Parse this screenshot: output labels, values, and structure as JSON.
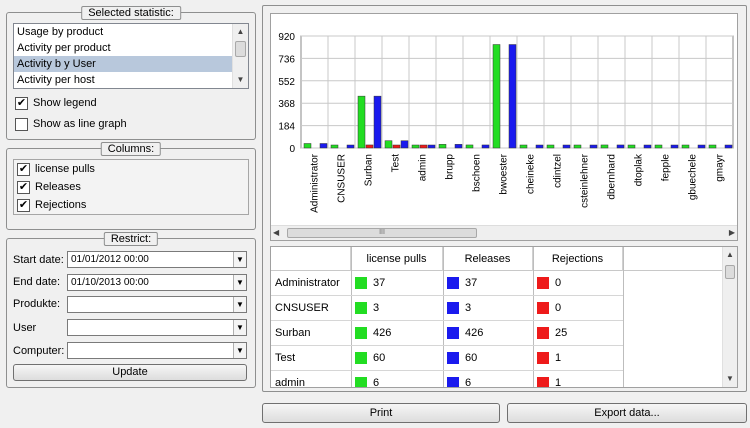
{
  "selected_statistic": {
    "title": "Selected statistic:",
    "items": [
      "Usage by product",
      "Activity per product",
      "Activity b y User",
      "Activity per host"
    ],
    "selected_index": 2,
    "show_legend_label": "Show legend",
    "show_legend_checked": true,
    "show_line_graph_label": "Show as line graph",
    "show_line_graph_checked": false
  },
  "columns": {
    "title": "Columns:",
    "items": [
      {
        "label": "license pulls",
        "checked": true
      },
      {
        "label": "Releases",
        "checked": true
      },
      {
        "label": "Rejections",
        "checked": true
      }
    ]
  },
  "restrict": {
    "title": "Restrict:",
    "start_label": "Start date:",
    "start_value": "01/01/2012 00:00",
    "end_label": "End date:",
    "end_value": "01/10/2013 00:00",
    "produkte_label": "Produkte:",
    "produkte_value": "",
    "user_label": "User",
    "user_value": "",
    "computer_label": "Computer:",
    "computer_value": "",
    "update_label": "Update"
  },
  "chart_data": {
    "type": "bar",
    "categories": [
      "Administrator",
      "CNSUSER",
      "Surban",
      "Test",
      "admin",
      "brupp",
      "bschoen",
      "bwoester",
      "cheineke",
      "cdintzel",
      "csteinlehner",
      "dbernhard",
      "dtoplak",
      "fepple",
      "gbuechele",
      "gmayr"
    ],
    "series": [
      {
        "name": "license pulls",
        "color": "#22dd22",
        "values": [
          37,
          3,
          426,
          60,
          6,
          30,
          25,
          850,
          20,
          10,
          4,
          25,
          2,
          20,
          10,
          10
        ]
      },
      {
        "name": "Releases",
        "color": "#1a1aee",
        "values": [
          37,
          3,
          426,
          60,
          6,
          30,
          25,
          850,
          20,
          10,
          4,
          25,
          2,
          20,
          10,
          10
        ]
      },
      {
        "name": "Rejections",
        "color": "#ee1a1a",
        "values": [
          0,
          0,
          25,
          1,
          1,
          0,
          0,
          0,
          0,
          0,
          0,
          0,
          0,
          0,
          0,
          0
        ]
      }
    ],
    "yticks": [
      0,
      184,
      368,
      552,
      736,
      920
    ],
    "ylim": [
      0,
      920
    ],
    "grid": true
  },
  "table": {
    "headers": [
      "license pulls",
      "Releases",
      "Rejections"
    ],
    "rows": [
      {
        "name": "Administrator",
        "values": [
          "37",
          "37",
          "0"
        ]
      },
      {
        "name": "CNSUSER",
        "values": [
          "3",
          "3",
          "0"
        ]
      },
      {
        "name": "Surban",
        "values": [
          "426",
          "426",
          "25"
        ]
      },
      {
        "name": "Test",
        "values": [
          "60",
          "60",
          "1"
        ]
      },
      {
        "name": "admin",
        "values": [
          "6",
          "6",
          "1"
        ]
      }
    ],
    "colors": [
      "#22dd22",
      "#1a1aee",
      "#ee1a1a"
    ]
  },
  "buttons": {
    "print": "Print",
    "export": "Export data..."
  },
  "hscroll_glyph": "III"
}
